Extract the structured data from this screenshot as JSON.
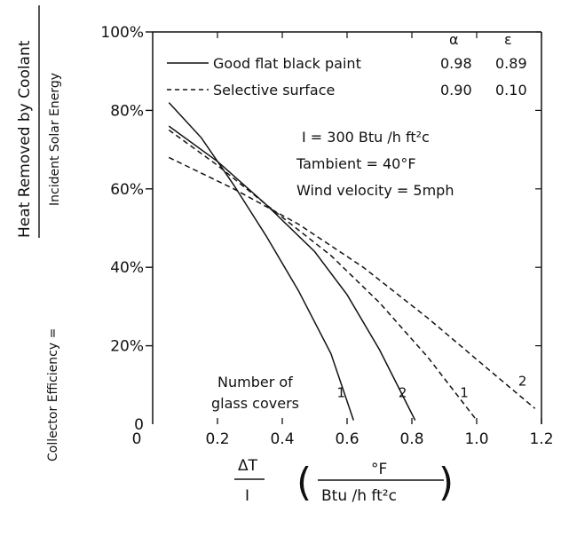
{
  "chart_data": {
    "type": "line",
    "title": "",
    "ylabel_top": "Heat Removed by Coolant",
    "ylabel_bottom": "Incident Solar Energy",
    "ylabel_prefix": "Collector Efficiency =",
    "xlabel_fraction_num": "ΔT",
    "xlabel_fraction_den": "I",
    "xlabel_unit_num": "°F",
    "xlabel_unit_den": "Btu /h  ft²c",
    "xlim": [
      0,
      1.2
    ],
    "ylim": [
      0,
      100
    ],
    "x_ticks": [
      "0",
      "0.2",
      "0.4",
      "0.6",
      "0.8",
      "1.0",
      "1.2"
    ],
    "y_ticks": [
      "0",
      "20%",
      "40%",
      "60%",
      "80%",
      "100%"
    ],
    "legend_header_alpha": "α",
    "legend_header_eps": "ε",
    "legend": [
      {
        "label": "Good flat black paint",
        "alpha": "0.98",
        "eps": "0.89",
        "style": "solid"
      },
      {
        "label": "Selective surface",
        "alpha": "0.90",
        "eps": "0.10",
        "style": "dashed"
      }
    ],
    "conditions": [
      "I = 300 Btu /h  ft²c",
      "Tambient = 40°F",
      "Wind velocity = 5mph"
    ],
    "annotation_covers": [
      "Number of",
      "glass covers"
    ],
    "series": [
      {
        "name": "Good flat black paint",
        "covers": "1",
        "style": "solid",
        "points": [
          [
            0.05,
            82
          ],
          [
            0.15,
            73
          ],
          [
            0.25,
            61
          ],
          [
            0.35,
            48
          ],
          [
            0.45,
            34
          ],
          [
            0.55,
            18
          ],
          [
            0.62,
            1
          ]
        ]
      },
      {
        "name": "Good flat black paint",
        "covers": "2",
        "style": "solid",
        "points": [
          [
            0.05,
            76
          ],
          [
            0.2,
            67
          ],
          [
            0.35,
            56
          ],
          [
            0.5,
            44
          ],
          [
            0.6,
            33
          ],
          [
            0.7,
            19
          ],
          [
            0.81,
            1
          ]
        ]
      },
      {
        "name": "Selective surface",
        "covers": "1",
        "style": "dashed",
        "points": [
          [
            0.05,
            75
          ],
          [
            0.2,
            66
          ],
          [
            0.35,
            56
          ],
          [
            0.55,
            43
          ],
          [
            0.7,
            31
          ],
          [
            0.85,
            17
          ],
          [
            1.0,
            1
          ]
        ]
      },
      {
        "name": "Selective surface",
        "covers": "2",
        "style": "dashed",
        "points": [
          [
            0.05,
            68
          ],
          [
            0.25,
            60
          ],
          [
            0.45,
            51
          ],
          [
            0.65,
            40
          ],
          [
            0.85,
            27
          ],
          [
            1.05,
            13
          ],
          [
            1.18,
            4
          ]
        ]
      }
    ]
  }
}
